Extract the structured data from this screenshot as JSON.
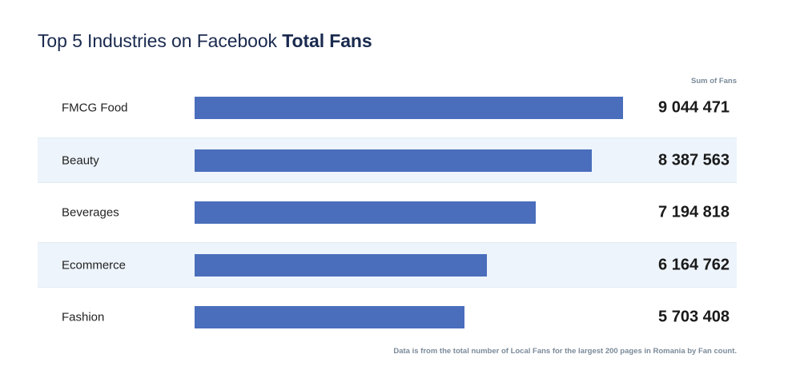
{
  "chart_data": {
    "type": "bar",
    "orientation": "horizontal",
    "title": "Top 5 Industries on Facebook",
    "title_bold": "Total Fans",
    "column_header": "Sum of Fans",
    "categories": [
      "FMCG Food",
      "Beauty",
      "Beverages",
      "Ecommerce",
      "Fashion"
    ],
    "values": [
      9044471,
      8387563,
      7194818,
      6164762,
      5703408
    ],
    "value_labels": [
      "9 044 471",
      "8 387 563",
      "7 194 818",
      "6 164 762",
      "5 703 408"
    ],
    "grid": false,
    "legend": "none",
    "footnote": "Data is from the total number of Local Fans for the largest 200 pages in Romania by Fan count."
  },
  "colors": {
    "bar": "#4a6ebc",
    "row_shade": "#edf4fb",
    "title": "#1a2a4f"
  }
}
